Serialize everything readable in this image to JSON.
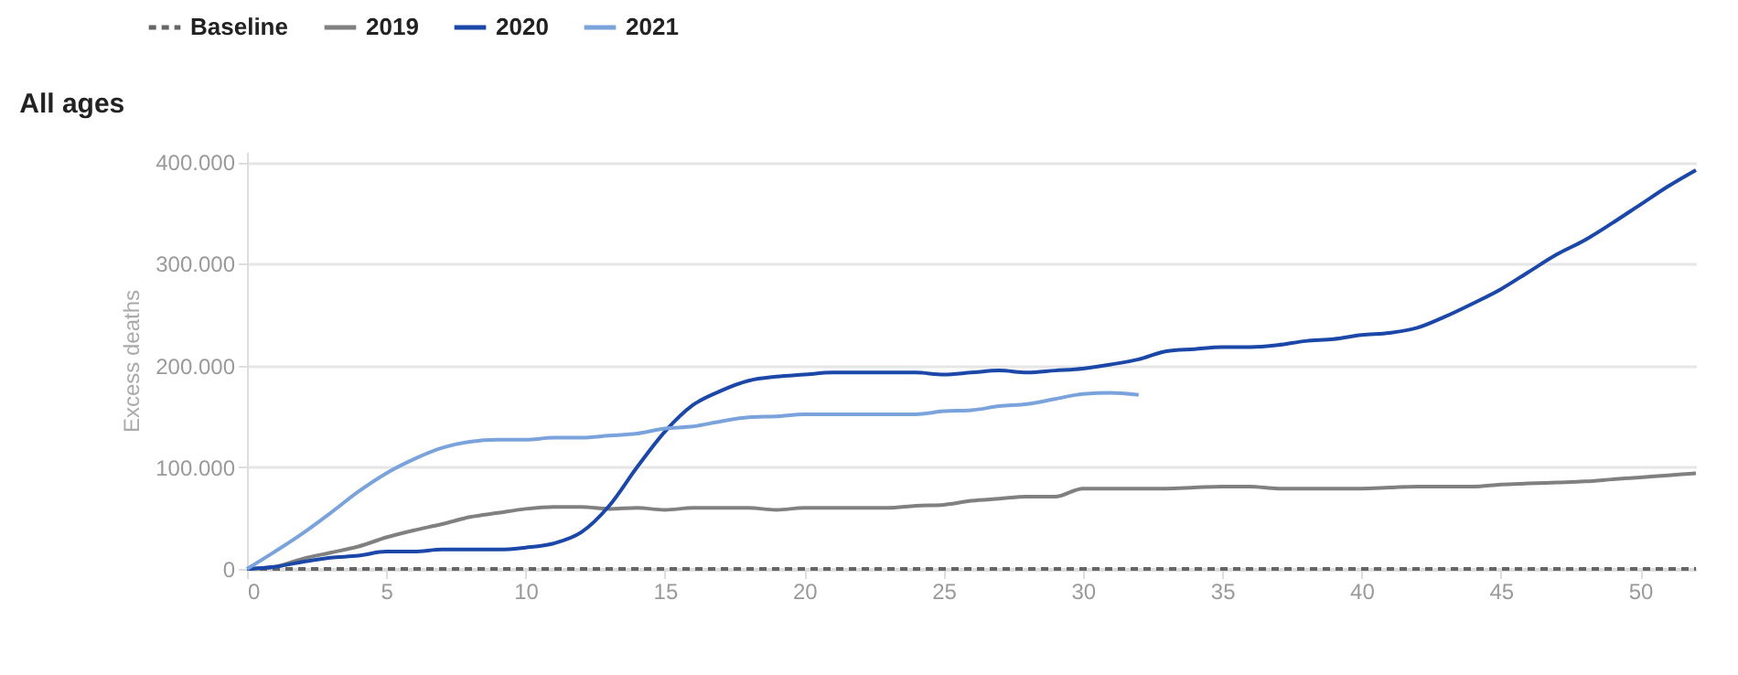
{
  "chart_data": {
    "type": "line",
    "title": "All ages",
    "ylabel": "Excess deaths",
    "legend": "top left",
    "grid": "y",
    "marker": "none",
    "x": [
      0,
      1,
      2,
      3,
      4,
      5,
      6,
      7,
      8,
      9,
      10,
      11,
      12,
      13,
      14,
      15,
      16,
      17,
      18,
      19,
      20,
      21,
      22,
      23,
      24,
      25,
      26,
      27,
      28,
      29,
      30,
      31,
      32,
      33,
      34,
      35,
      36,
      37,
      38,
      39,
      40,
      41,
      42,
      43,
      44,
      45,
      46,
      47,
      48,
      49,
      50,
      51,
      52
    ],
    "xlim": [
      0,
      52
    ],
    "xticks": [
      0,
      5,
      10,
      15,
      20,
      25,
      30,
      35,
      40,
      45,
      50
    ],
    "ylim": [
      0,
      410000
    ],
    "yticks": [
      0,
      {
        "value": 100000,
        "label": "100.000"
      },
      {
        "value": 200000,
        "label": "200.000"
      },
      {
        "value": 300000,
        "label": "300.000"
      },
      {
        "value": 400000,
        "label": "400.000"
      }
    ],
    "series": [
      {
        "name": "Baseline",
        "color": "#666666",
        "line_style": "dashed",
        "x": [
          0,
          52
        ],
        "values": [
          0,
          0
        ]
      },
      {
        "name": "2019",
        "color": "#808080",
        "line_style": "solid",
        "values": [
          0,
          2000,
          10000,
          16000,
          22000,
          31000,
          38000,
          44000,
          51000,
          55000,
          59000,
          61000,
          61000,
          59000,
          60000,
          58000,
          60000,
          60000,
          60000,
          58000,
          60000,
          60000,
          60000,
          60000,
          62000,
          63000,
          67000,
          69000,
          71000,
          71000,
          79000,
          79000,
          79000,
          79000,
          80000,
          81000,
          81000,
          79000,
          79000,
          79000,
          79000,
          80000,
          81000,
          81000,
          81000,
          83000,
          84000,
          85000,
          86000,
          88000,
          90000,
          92000,
          94000
        ]
      },
      {
        "name": "2020",
        "color": "#1a47a8",
        "line_style": "solid",
        "values": [
          0,
          2000,
          7000,
          11000,
          13000,
          17000,
          17000,
          19000,
          19000,
          19000,
          21000,
          25000,
          36000,
          62000,
          100000,
          135000,
          161000,
          175000,
          185000,
          189000,
          191000,
          193000,
          193000,
          193000,
          193000,
          191000,
          193000,
          195000,
          193000,
          195000,
          197000,
          201000,
          206000,
          214000,
          216000,
          218000,
          218000,
          220000,
          224000,
          226000,
          230000,
          232000,
          237000,
          248000,
          261000,
          275000,
          292000,
          309000,
          323000,
          340000,
          358000,
          376000,
          392000
        ]
      },
      {
        "name": "2021",
        "color": "#7aa3dc",
        "line_style": "solid",
        "x": [
          0,
          1,
          2,
          3,
          4,
          5,
          6,
          7,
          8,
          9,
          10,
          11,
          12,
          13,
          14,
          15,
          16,
          17,
          18,
          19,
          20,
          21,
          22,
          23,
          24,
          25,
          26,
          27,
          28,
          29,
          30,
          31,
          32
        ],
        "values": [
          0,
          17000,
          35000,
          55000,
          76000,
          94000,
          108000,
          119000,
          125000,
          127000,
          127000,
          129000,
          129000,
          131000,
          133000,
          138000,
          140000,
          145000,
          149000,
          150000,
          152000,
          152000,
          152000,
          152000,
          152000,
          155000,
          156000,
          160000,
          162000,
          167000,
          172000,
          173000,
          171000
        ]
      }
    ]
  }
}
